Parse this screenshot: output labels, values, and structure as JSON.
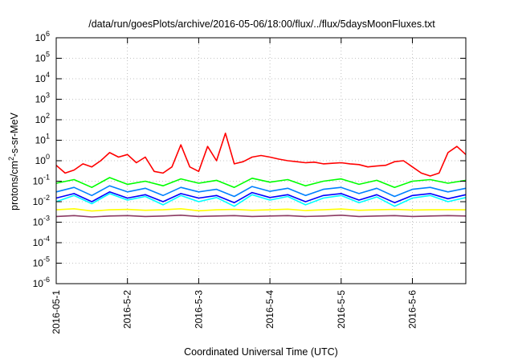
{
  "chart_data": {
    "type": "line",
    "title": "/data/run/goesPlots/archive/2016-05-06/18:00/flux/../flux/5daysMoonFluxes.txt",
    "xlabel": "Coordinated Universal Time (UTC)",
    "ylabel": {
      "prefix": "protons/cm",
      "sup": "2",
      "suffix": "-s-sr-MeV"
    },
    "yscale": "log",
    "ylim": [
      1e-06,
      1000000.0
    ],
    "y_ticks": [
      {
        "value": 1000000.0,
        "base": "10",
        "exp": "6"
      },
      {
        "value": 100000.0,
        "base": "10",
        "exp": "5"
      },
      {
        "value": 10000.0,
        "base": "10",
        "exp": "4"
      },
      {
        "value": 1000.0,
        "base": "10",
        "exp": "3"
      },
      {
        "value": 100.0,
        "base": "10",
        "exp": "2"
      },
      {
        "value": 10.0,
        "base": "10",
        "exp": "1"
      },
      {
        "value": 1.0,
        "base": "10",
        "exp": "0"
      },
      {
        "value": 0.1,
        "base": "10",
        "exp": "-1"
      },
      {
        "value": 0.01,
        "base": "10",
        "exp": "-2"
      },
      {
        "value": 0.001,
        "base": "10",
        "exp": "-3"
      },
      {
        "value": 0.0001,
        "base": "10",
        "exp": "-4"
      },
      {
        "value": 1e-05,
        "base": "10",
        "exp": "-5"
      },
      {
        "value": 1e-06,
        "base": "10",
        "exp": "-6"
      }
    ],
    "xlim": [
      "2016-05-01T00:00",
      "2016-05-06T18:00"
    ],
    "x_ticks": [
      {
        "value": "2016-05-01",
        "label": "2016-05-1"
      },
      {
        "value": "2016-05-02",
        "label": "2016-5-2"
      },
      {
        "value": "2016-05-03",
        "label": "2016-5-3"
      },
      {
        "value": "2016-05-04",
        "label": "2016-5-4"
      },
      {
        "value": "2016-05-05",
        "label": "2016-5-5"
      },
      {
        "value": "2016-05-06",
        "label": "2016-5-6"
      }
    ],
    "grid": true,
    "series": [
      {
        "color": "#ff0000",
        "x": [
          "2016-05-01T00:00",
          "2016-05-01T03:00",
          "2016-05-01T06:00",
          "2016-05-01T09:00",
          "2016-05-01T12:00",
          "2016-05-01T15:00",
          "2016-05-01T18:00",
          "2016-05-01T21:00",
          "2016-05-02T00:00",
          "2016-05-02T03:00",
          "2016-05-02T06:00",
          "2016-05-02T09:00",
          "2016-05-02T12:00",
          "2016-05-02T15:00",
          "2016-05-02T18:00",
          "2016-05-02T21:00",
          "2016-05-03T00:00",
          "2016-05-03T03:00",
          "2016-05-03T06:00",
          "2016-05-03T09:00",
          "2016-05-03T12:00",
          "2016-05-03T15:00",
          "2016-05-03T18:00",
          "2016-05-03T21:00",
          "2016-05-04T00:00",
          "2016-05-04T03:00",
          "2016-05-04T06:00",
          "2016-05-04T09:00",
          "2016-05-04T12:00",
          "2016-05-04T15:00",
          "2016-05-04T18:00",
          "2016-05-04T21:00",
          "2016-05-05T00:00",
          "2016-05-05T03:00",
          "2016-05-05T06:00",
          "2016-05-05T09:00",
          "2016-05-05T12:00",
          "2016-05-05T15:00",
          "2016-05-05T18:00",
          "2016-05-05T21:00",
          "2016-05-06T00:00",
          "2016-05-06T03:00",
          "2016-05-06T06:00",
          "2016-05-06T09:00",
          "2016-05-06T12:00",
          "2016-05-06T15:00",
          "2016-05-06T18:00"
        ],
        "values": [
          0.6,
          0.25,
          0.35,
          0.7,
          0.5,
          1.0,
          2.5,
          1.5,
          2.0,
          0.8,
          1.5,
          0.3,
          0.25,
          0.5,
          6.0,
          0.5,
          0.3,
          5.0,
          1.0,
          22.0,
          0.7,
          0.9,
          1.5,
          1.8,
          1.5,
          1.2,
          1.0,
          0.9,
          0.8,
          0.85,
          0.7,
          0.75,
          0.8,
          0.7,
          0.65,
          0.5,
          0.55,
          0.6,
          0.9,
          1.0,
          0.5,
          0.25,
          0.18,
          0.25,
          2.5,
          5.0,
          2.0
        ]
      },
      {
        "color": "#00ff00",
        "x": [
          "2016-05-01T00:00",
          "2016-05-01T06:00",
          "2016-05-01T12:00",
          "2016-05-01T18:00",
          "2016-05-02T00:00",
          "2016-05-02T06:00",
          "2016-05-02T12:00",
          "2016-05-02T18:00",
          "2016-05-03T00:00",
          "2016-05-03T06:00",
          "2016-05-03T12:00",
          "2016-05-03T18:00",
          "2016-05-04T00:00",
          "2016-05-04T06:00",
          "2016-05-04T12:00",
          "2016-05-04T18:00",
          "2016-05-05T00:00",
          "2016-05-05T06:00",
          "2016-05-05T12:00",
          "2016-05-05T18:00",
          "2016-05-06T00:00",
          "2016-05-06T06:00",
          "2016-05-06T12:00",
          "2016-05-06T18:00"
        ],
        "values": [
          0.08,
          0.12,
          0.05,
          0.15,
          0.07,
          0.1,
          0.06,
          0.13,
          0.08,
          0.11,
          0.05,
          0.14,
          0.09,
          0.12,
          0.06,
          0.1,
          0.13,
          0.07,
          0.11,
          0.05,
          0.1,
          0.12,
          0.08,
          0.11
        ]
      },
      {
        "color": "#00ffff",
        "x": [
          "2016-05-01T00:00",
          "2016-05-01T06:00",
          "2016-05-01T12:00",
          "2016-05-01T18:00",
          "2016-05-02T00:00",
          "2016-05-02T06:00",
          "2016-05-02T12:00",
          "2016-05-02T18:00",
          "2016-05-03T00:00",
          "2016-05-03T06:00",
          "2016-05-03T12:00",
          "2016-05-03T18:00",
          "2016-05-04T00:00",
          "2016-05-04T06:00",
          "2016-05-04T12:00",
          "2016-05-04T18:00",
          "2016-05-05T00:00",
          "2016-05-05T06:00",
          "2016-05-05T12:00",
          "2016-05-05T18:00",
          "2016-05-06T00:00",
          "2016-05-06T06:00",
          "2016-05-06T12:00",
          "2016-05-06T18:00"
        ],
        "values": [
          0.01,
          0.02,
          0.008,
          0.025,
          0.012,
          0.018,
          0.007,
          0.02,
          0.01,
          0.016,
          0.006,
          0.022,
          0.012,
          0.018,
          0.007,
          0.015,
          0.02,
          0.009,
          0.017,
          0.006,
          0.015,
          0.02,
          0.01,
          0.016
        ]
      },
      {
        "color": "#0080ff",
        "x": [
          "2016-05-01T00:00",
          "2016-05-01T06:00",
          "2016-05-01T12:00",
          "2016-05-01T18:00",
          "2016-05-02T00:00",
          "2016-05-02T06:00",
          "2016-05-02T12:00",
          "2016-05-02T18:00",
          "2016-05-03T00:00",
          "2016-05-03T06:00",
          "2016-05-03T12:00",
          "2016-05-03T18:00",
          "2016-05-04T00:00",
          "2016-05-04T06:00",
          "2016-05-04T12:00",
          "2016-05-04T18:00",
          "2016-05-05T00:00",
          "2016-05-05T06:00",
          "2016-05-05T12:00",
          "2016-05-05T18:00",
          "2016-05-06T00:00",
          "2016-05-06T06:00",
          "2016-05-06T12:00",
          "2016-05-06T18:00"
        ],
        "values": [
          0.03,
          0.05,
          0.02,
          0.06,
          0.03,
          0.045,
          0.02,
          0.05,
          0.03,
          0.04,
          0.018,
          0.055,
          0.032,
          0.045,
          0.02,
          0.04,
          0.05,
          0.025,
          0.045,
          0.018,
          0.04,
          0.05,
          0.03,
          0.045
        ]
      },
      {
        "color": "#0000ff",
        "x": [
          "2016-05-01T00:00",
          "2016-05-01T06:00",
          "2016-05-01T12:00",
          "2016-05-01T18:00",
          "2016-05-02T00:00",
          "2016-05-02T06:00",
          "2016-05-02T12:00",
          "2016-05-02T18:00",
          "2016-05-03T00:00",
          "2016-05-03T06:00",
          "2016-05-03T12:00",
          "2016-05-03T18:00",
          "2016-05-04T00:00",
          "2016-05-04T06:00",
          "2016-05-04T12:00",
          "2016-05-04T18:00",
          "2016-05-05T00:00",
          "2016-05-05T06:00",
          "2016-05-05T12:00",
          "2016-05-05T18:00",
          "2016-05-06T00:00",
          "2016-05-06T06:00",
          "2016-05-06T12:00",
          "2016-05-06T18:00"
        ],
        "values": [
          0.015,
          0.025,
          0.01,
          0.03,
          0.015,
          0.022,
          0.01,
          0.025,
          0.015,
          0.02,
          0.009,
          0.028,
          0.016,
          0.022,
          0.01,
          0.02,
          0.025,
          0.012,
          0.022,
          0.009,
          0.02,
          0.025,
          0.014,
          0.022
        ]
      },
      {
        "color": "#ffff00",
        "x": [
          "2016-05-01T00:00",
          "2016-05-01T06:00",
          "2016-05-01T12:00",
          "2016-05-01T18:00",
          "2016-05-02T00:00",
          "2016-05-02T06:00",
          "2016-05-02T12:00",
          "2016-05-02T18:00",
          "2016-05-03T00:00",
          "2016-05-03T06:00",
          "2016-05-03T12:00",
          "2016-05-03T18:00",
          "2016-05-04T00:00",
          "2016-05-04T06:00",
          "2016-05-04T12:00",
          "2016-05-04T18:00",
          "2016-05-05T00:00",
          "2016-05-05T06:00",
          "2016-05-05T12:00",
          "2016-05-05T18:00",
          "2016-05-06T00:00",
          "2016-05-06T06:00",
          "2016-05-06T12:00",
          "2016-05-06T18:00"
        ],
        "values": [
          0.004,
          0.0045,
          0.0035,
          0.004,
          0.0042,
          0.0038,
          0.004,
          0.0045,
          0.0036,
          0.004,
          0.0042,
          0.0038,
          0.004,
          0.0043,
          0.0037,
          0.004,
          0.0044,
          0.0038,
          0.004,
          0.0042,
          0.0039,
          0.004,
          0.0041,
          0.004
        ]
      },
      {
        "color": "#8b3a62",
        "x": [
          "2016-05-01T00:00",
          "2016-05-01T06:00",
          "2016-05-01T12:00",
          "2016-05-01T18:00",
          "2016-05-02T00:00",
          "2016-05-02T06:00",
          "2016-05-02T12:00",
          "2016-05-02T18:00",
          "2016-05-03T00:00",
          "2016-05-03T06:00",
          "2016-05-03T12:00",
          "2016-05-03T18:00",
          "2016-05-04T00:00",
          "2016-05-04T06:00",
          "2016-05-04T12:00",
          "2016-05-04T18:00",
          "2016-05-05T00:00",
          "2016-05-05T06:00",
          "2016-05-05T12:00",
          "2016-05-05T18:00",
          "2016-05-06T00:00",
          "2016-05-06T06:00",
          "2016-05-06T12:00",
          "2016-05-06T18:00"
        ],
        "values": [
          0.0019,
          0.0021,
          0.0018,
          0.002,
          0.0021,
          0.0019,
          0.002,
          0.0022,
          0.0019,
          0.002,
          0.0021,
          0.0019,
          0.002,
          0.0021,
          0.0019,
          0.002,
          0.0022,
          0.0019,
          0.002,
          0.0021,
          0.0019,
          0.002,
          0.0021,
          0.002
        ]
      }
    ]
  }
}
